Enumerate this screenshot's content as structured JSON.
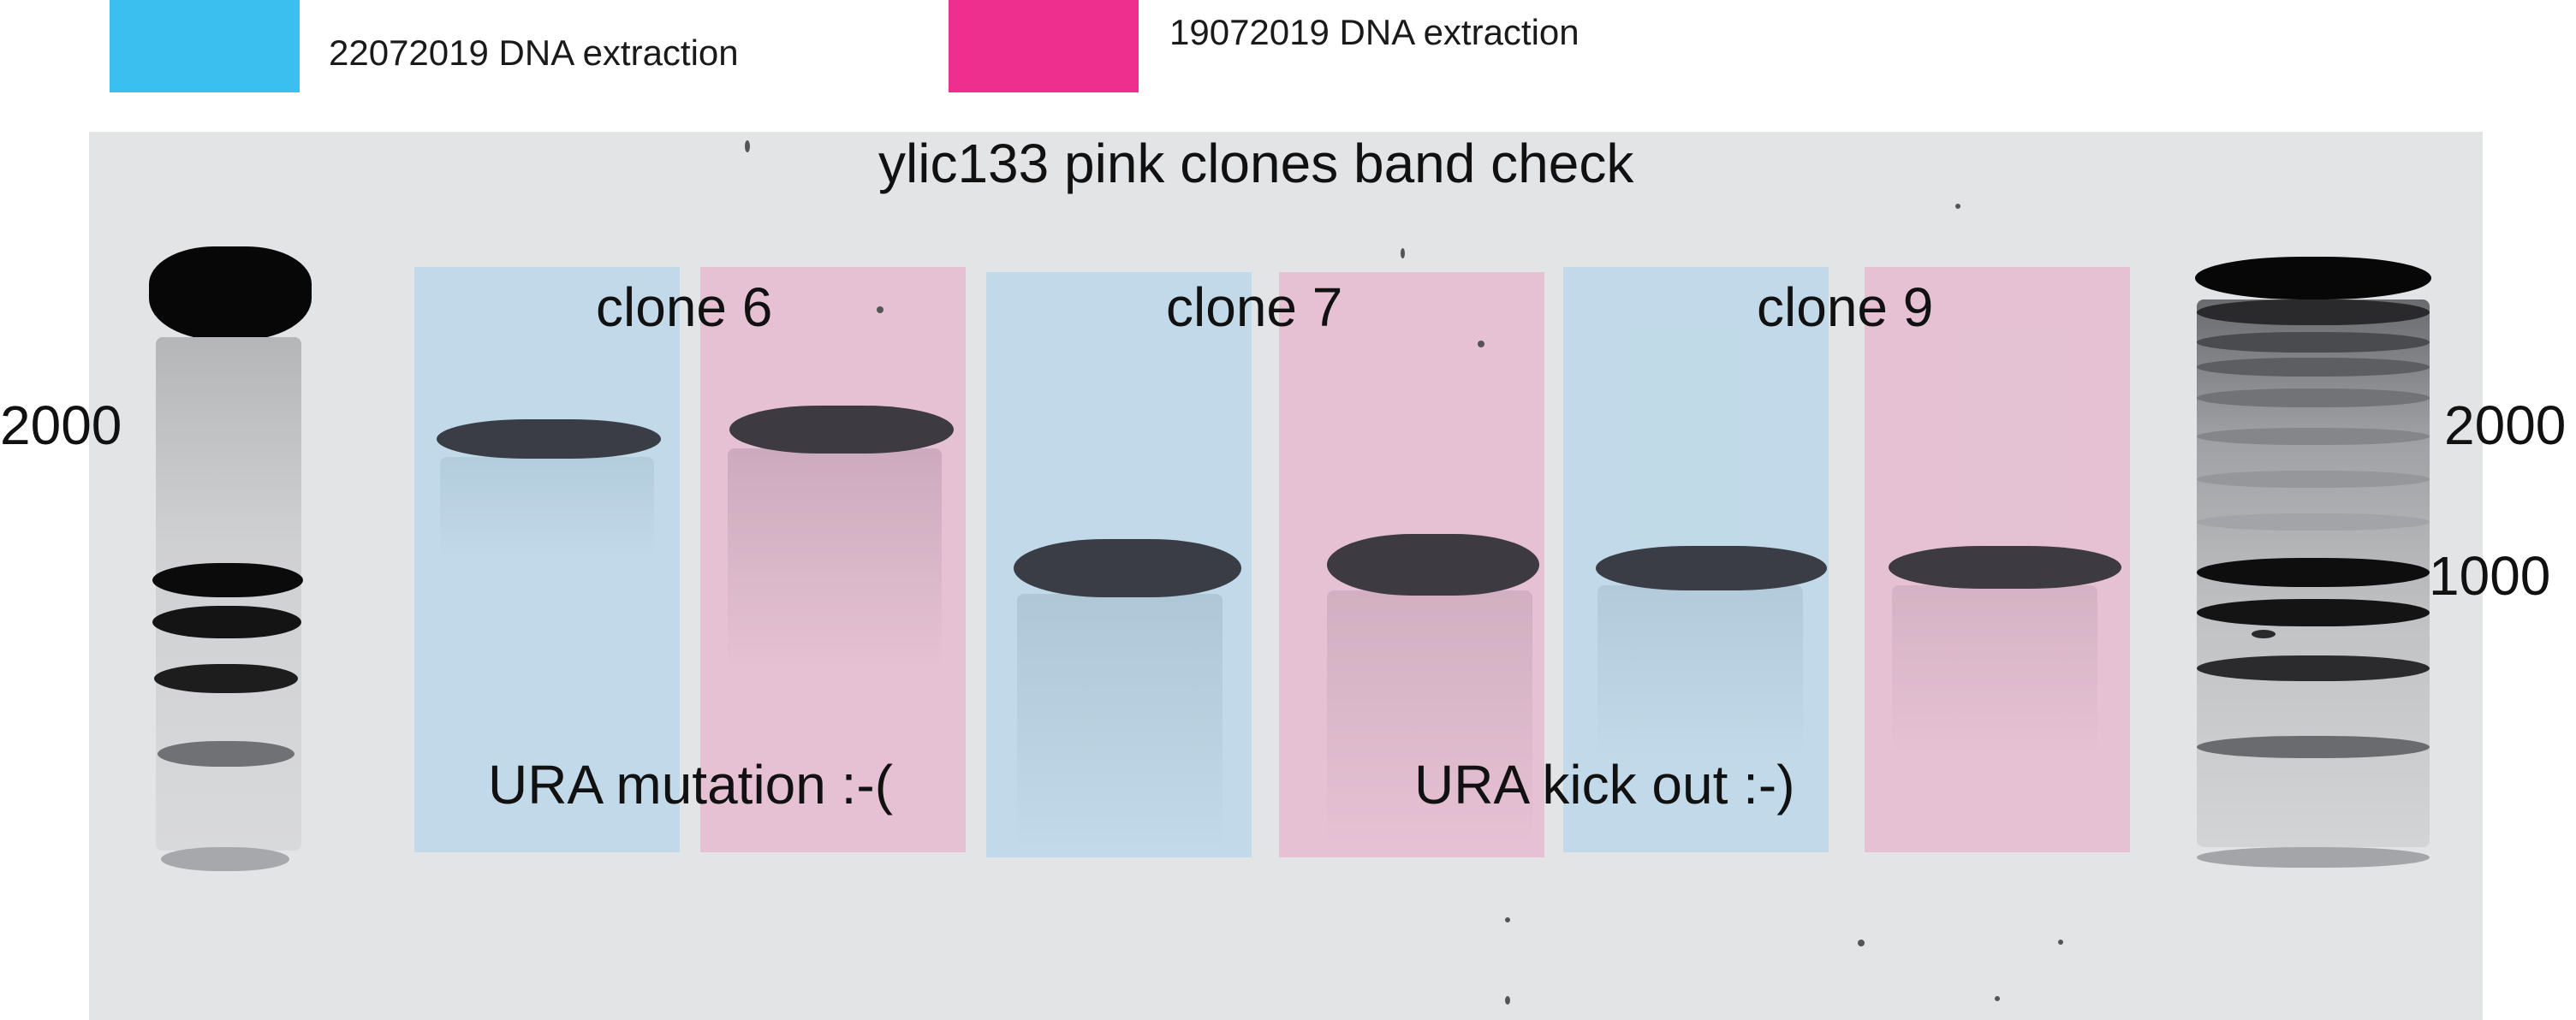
{
  "legend": {
    "items": [
      {
        "label": "22072019 DNA extraction",
        "color": "#3bbfee"
      },
      {
        "label": "19072019 DNA extraction",
        "color": "#ee2f8d"
      }
    ]
  },
  "gel": {
    "title": "ylic133 pink clones band check",
    "background": "#e3e4e6",
    "clones": [
      {
        "label": "clone 6"
      },
      {
        "label": "clone 7"
      },
      {
        "label": "clone 9"
      }
    ],
    "annotations": {
      "left": "URA mutation :-(",
      "right": "URA kick out :-)"
    },
    "markers": {
      "left_2000": "2000",
      "right_2000": "2000",
      "right_1000": "1000"
    },
    "band_color": "#3d3f47",
    "lane_tint_blue": "rgba(150,205,235,0.45)",
    "lane_tint_pink": "rgba(232,150,190,0.45)"
  }
}
